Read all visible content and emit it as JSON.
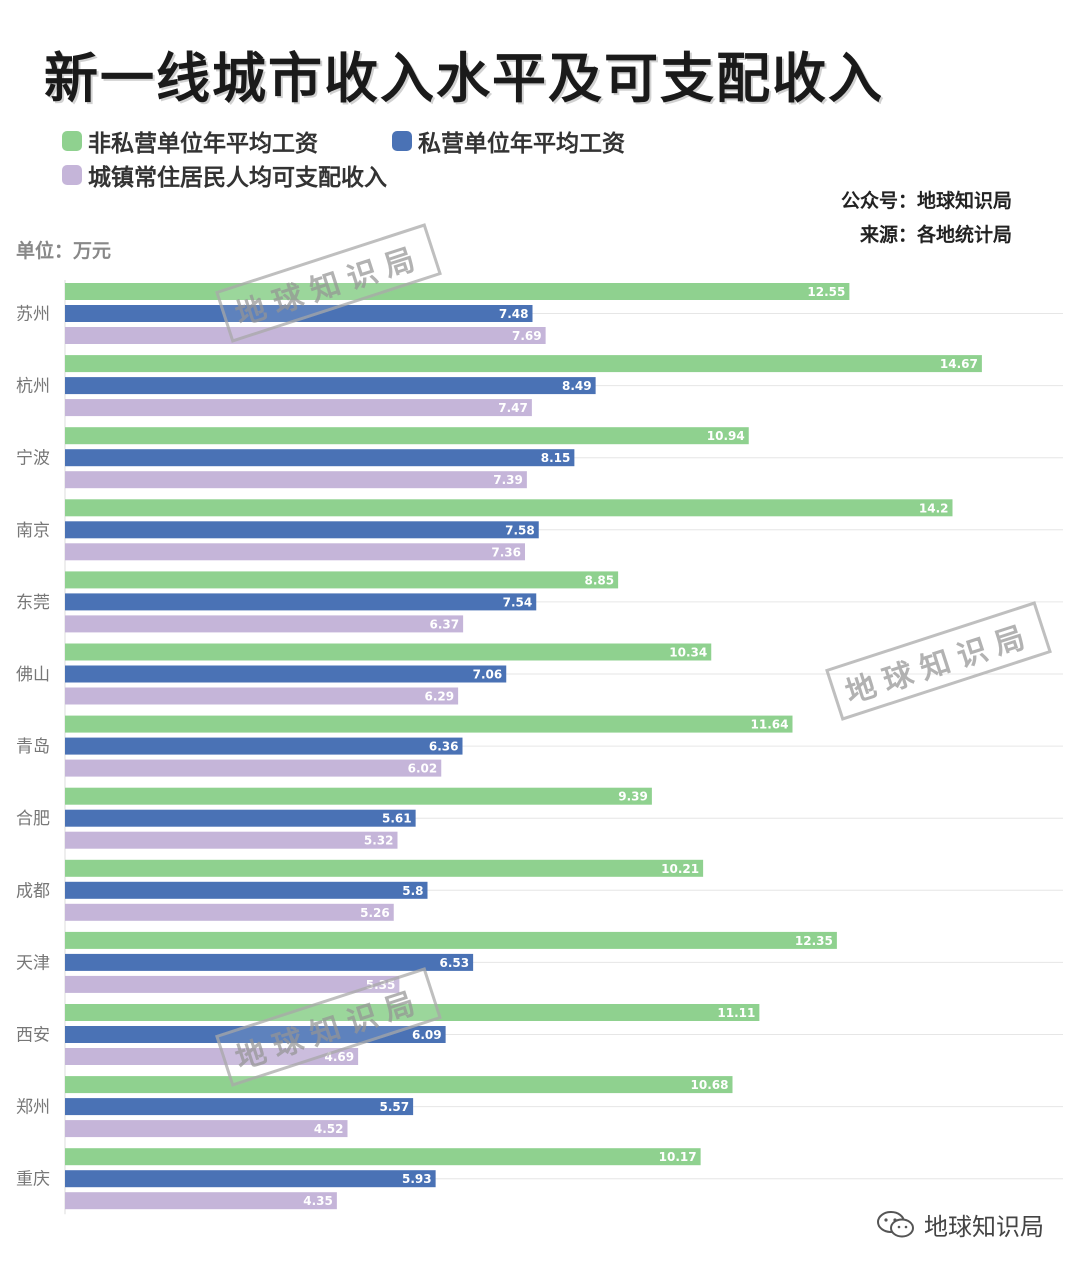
{
  "title": "新一线城市收入水平及可支配收入",
  "source_account": "公众号：地球知识局",
  "source_origin": "来源：各地统计局",
  "unit_label": "单位：万元",
  "watermark_text": "地球知识局",
  "brand_text": "地球知识局",
  "chart_data": {
    "type": "bar",
    "orientation": "horizontal",
    "categories": [
      "苏州",
      "杭州",
      "宁波",
      "南京",
      "东莞",
      "佛山",
      "青岛",
      "合肥",
      "成都",
      "天津",
      "西安",
      "郑州",
      "重庆"
    ],
    "series": [
      {
        "name": "非私营单位年平均工资",
        "color": "#8fd18f",
        "values": [
          12.55,
          14.67,
          10.94,
          14.2,
          8.85,
          10.34,
          11.64,
          9.39,
          10.21,
          12.35,
          11.11,
          10.68,
          10.17
        ]
      },
      {
        "name": "私营单位年平均工资",
        "color": "#4a72b5",
        "values": [
          7.48,
          8.49,
          8.15,
          7.58,
          7.54,
          7.06,
          6.36,
          5.61,
          5.8,
          6.53,
          6.09,
          5.57,
          5.93
        ]
      },
      {
        "name": "城镇常住居民人均可支配收入",
        "color": "#c5b5d9",
        "values": [
          7.69,
          7.47,
          7.39,
          7.36,
          6.37,
          6.29,
          6.02,
          5.32,
          5.26,
          5.35,
          4.69,
          4.52,
          4.35
        ]
      }
    ],
    "unit": "万元",
    "grid": true,
    "legend": "top-left"
  }
}
